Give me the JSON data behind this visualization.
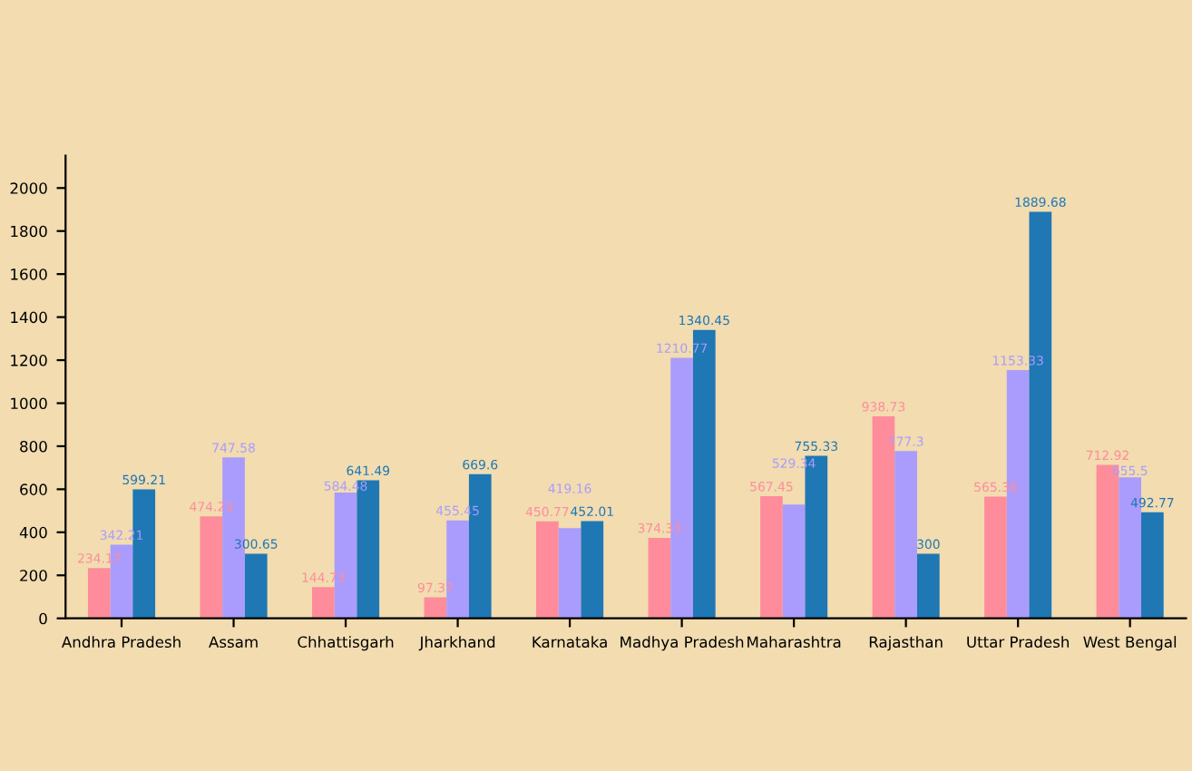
{
  "chart_data": {
    "type": "bar",
    "categories": [
      "Andhra Pradesh",
      "Assam",
      "Chhattisgarh",
      "Jharkhand",
      "Karnataka",
      "Madhya Pradesh",
      "Maharashtra",
      "Rajasthan",
      "Uttar Pradesh",
      "West Bengal"
    ],
    "series": [
      {
        "color": "#ff8c9a",
        "values": [
          234.17,
          474.23,
          144.73,
          97.37,
          450.77,
          374.33,
          567.45,
          938.73,
          565.36,
          712.92
        ]
      },
      {
        "color": "#aa9cfc",
        "values": [
          342.21,
          747.58,
          584.48,
          455.45,
          419.16,
          1210.77,
          529.34,
          777.3,
          1153.33,
          655.5
        ]
      },
      {
        "color": "#1f77b4",
        "values": [
          599.21,
          300.65,
          641.49,
          669.6,
          452.01,
          1340.45,
          755.33,
          300,
          1889.68,
          492.77
        ]
      }
    ],
    "ylim": [
      0,
      2150
    ],
    "yticks": [
      0,
      200,
      400,
      600,
      800,
      1000,
      1200,
      1400,
      1600,
      1800,
      2000
    ],
    "data_labels": true,
    "grid": false,
    "legend": false
  }
}
